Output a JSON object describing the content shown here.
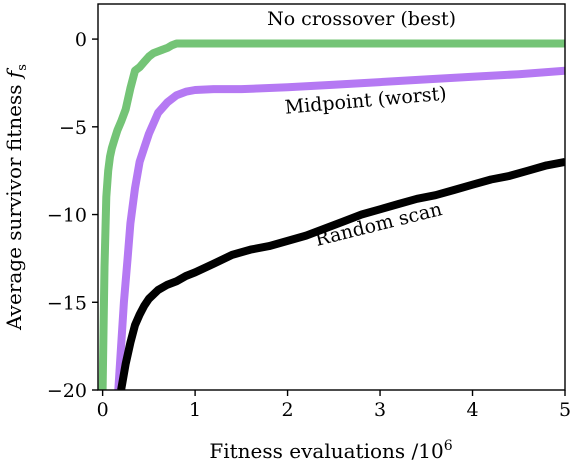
{
  "chart_data": {
    "type": "line",
    "xlabel_text": "Fitness evaluations /10",
    "xlabel_sup": "6",
    "ylabel_text": "Average survivor fitness ",
    "ylabel_var": "f",
    "ylabel_sub": "s",
    "xlim": [
      -0.05,
      5
    ],
    "ylim": [
      -20,
      2
    ],
    "x_ticks": [
      0,
      1,
      2,
      3,
      4,
      5
    ],
    "x_tick_labels": [
      "0",
      "1",
      "2",
      "3",
      "4",
      "5"
    ],
    "y_ticks": [
      0,
      -5,
      -10,
      -15,
      -20
    ],
    "y_tick_labels": [
      "0",
      "−5",
      "−10",
      "−15",
      "−20"
    ],
    "grid": false,
    "legend": "none",
    "series": [
      {
        "name": "No crossover (best)",
        "color": "#74c476",
        "x": [
          0.0,
          0.02,
          0.04,
          0.06,
          0.08,
          0.1,
          0.13,
          0.16,
          0.2,
          0.25,
          0.3,
          0.35,
          0.4,
          0.45,
          0.5,
          0.55,
          0.6,
          0.65,
          0.7,
          0.75,
          0.8,
          1.0,
          1.5,
          2.0,
          2.5,
          3.0,
          3.5,
          4.0,
          4.5,
          5.0
        ],
        "y": [
          -20,
          -13,
          -9,
          -7.5,
          -6.7,
          -6.2,
          -5.7,
          -5.2,
          -4.7,
          -4.0,
          -2.8,
          -1.8,
          -1.6,
          -1.3,
          -1.0,
          -0.8,
          -0.7,
          -0.6,
          -0.5,
          -0.35,
          -0.25,
          -0.25,
          -0.25,
          -0.25,
          -0.25,
          -0.25,
          -0.25,
          -0.25,
          -0.25,
          -0.25
        ]
      },
      {
        "name": "Midpoint (worst)",
        "color": "#b579f3",
        "x": [
          0.17,
          0.2,
          0.23,
          0.27,
          0.3,
          0.35,
          0.4,
          0.45,
          0.5,
          0.55,
          0.6,
          0.7,
          0.8,
          0.9,
          1.0,
          1.2,
          1.5,
          2.0,
          2.5,
          3.0,
          3.5,
          4.0,
          4.5,
          5.0
        ],
        "y": [
          -20,
          -17.5,
          -15,
          -12.5,
          -10.5,
          -8.5,
          -7.0,
          -6.2,
          -5.4,
          -4.8,
          -4.2,
          -3.6,
          -3.2,
          -3.0,
          -2.9,
          -2.85,
          -2.85,
          -2.75,
          -2.6,
          -2.45,
          -2.3,
          -2.15,
          -2.0,
          -1.8
        ]
      },
      {
        "name": "Random scan",
        "color": "#000000",
        "x": [
          0.2,
          0.25,
          0.3,
          0.35,
          0.4,
          0.45,
          0.5,
          0.6,
          0.7,
          0.8,
          0.9,
          1.0,
          1.2,
          1.4,
          1.6,
          1.8,
          2.0,
          2.2,
          2.4,
          2.6,
          2.8,
          3.0,
          3.2,
          3.4,
          3.6,
          3.8,
          4.0,
          4.2,
          4.4,
          4.6,
          4.8,
          5.0
        ],
        "y": [
          -20,
          -18.5,
          -17.3,
          -16.3,
          -15.7,
          -15.2,
          -14.8,
          -14.3,
          -14.0,
          -13.8,
          -13.5,
          -13.3,
          -12.8,
          -12.3,
          -12.0,
          -11.8,
          -11.5,
          -11.2,
          -10.8,
          -10.4,
          -10.0,
          -9.7,
          -9.4,
          -9.1,
          -8.9,
          -8.6,
          -8.3,
          -8.0,
          -7.8,
          -7.5,
          -7.2,
          -7.0
        ]
      }
    ],
    "annotations": [
      {
        "text": "No crossover (best)",
        "x": 2.8,
        "y": 0.8,
        "rotate": 0
      },
      {
        "text": "Midpoint (worst)",
        "x": 2.85,
        "y": -3.85,
        "rotate": -5
      },
      {
        "text": "Random scan",
        "x": 3.0,
        "y": -10.9,
        "rotate": -14
      }
    ]
  }
}
